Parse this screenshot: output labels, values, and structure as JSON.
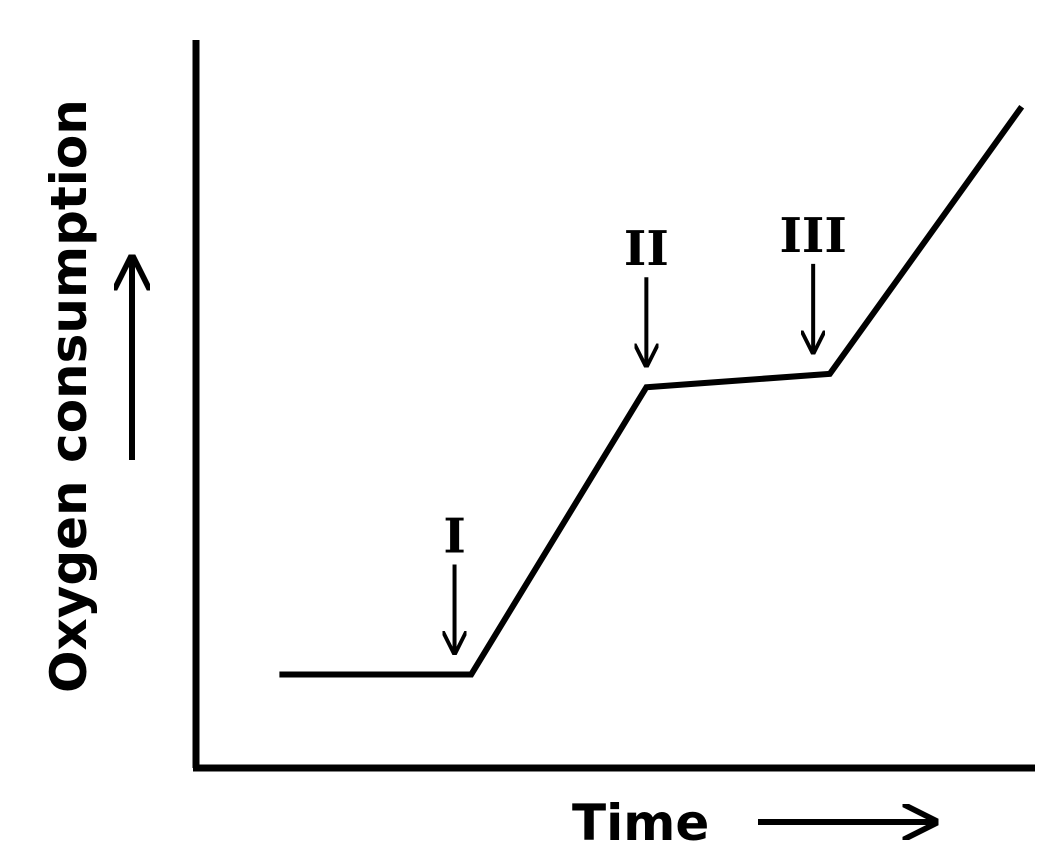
{
  "chart_data": {
    "type": "line",
    "xlabel": "Time",
    "ylabel": "Oxygen consumption",
    "xlim": [
      0,
      10
    ],
    "ylim": [
      0,
      10
    ],
    "grid": false,
    "series": [
      {
        "x": [
          1.0,
          3.3,
          5.4,
          7.6,
          9.9
        ],
        "y": [
          1.4,
          1.4,
          5.7,
          5.9,
          9.9
        ]
      }
    ],
    "annotations": [
      {
        "label": "I",
        "x": 3.1,
        "y": 1.4
      },
      {
        "label": "II",
        "x": 5.4,
        "y": 5.7
      },
      {
        "label": "III",
        "x": 7.4,
        "y": 5.9
      }
    ]
  }
}
